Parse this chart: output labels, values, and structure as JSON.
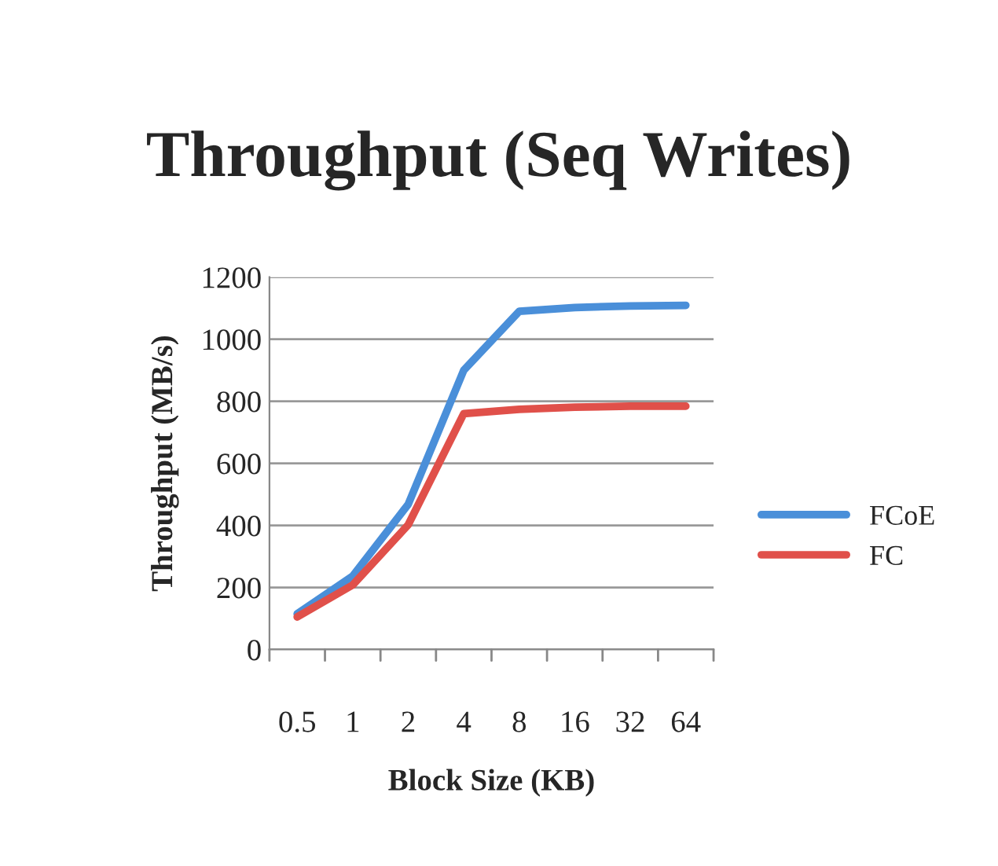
{
  "chart_data": {
    "type": "line",
    "title": "Throughput (Seq Writes)",
    "xlabel": "Block Size (KB)",
    "ylabel": "Throughput (MB/s)",
    "categories": [
      "0.5",
      "1",
      "2",
      "4",
      "8",
      "16",
      "32",
      "64"
    ],
    "series": [
      {
        "name": "FCoE",
        "color": "#4a8fd9",
        "values": [
          115,
          237,
          468,
          900,
          1090,
          1102,
          1107,
          1109
        ]
      },
      {
        "name": "FC",
        "color": "#e0504a",
        "values": [
          105,
          208,
          402,
          760,
          774,
          781,
          784,
          784
        ]
      }
    ],
    "ylim": [
      0,
      1200
    ],
    "yticks": [
      0,
      200,
      400,
      600,
      800,
      1000,
      1200
    ],
    "grid": "y",
    "legend": "right",
    "marker": "none",
    "line_style": "solid"
  }
}
